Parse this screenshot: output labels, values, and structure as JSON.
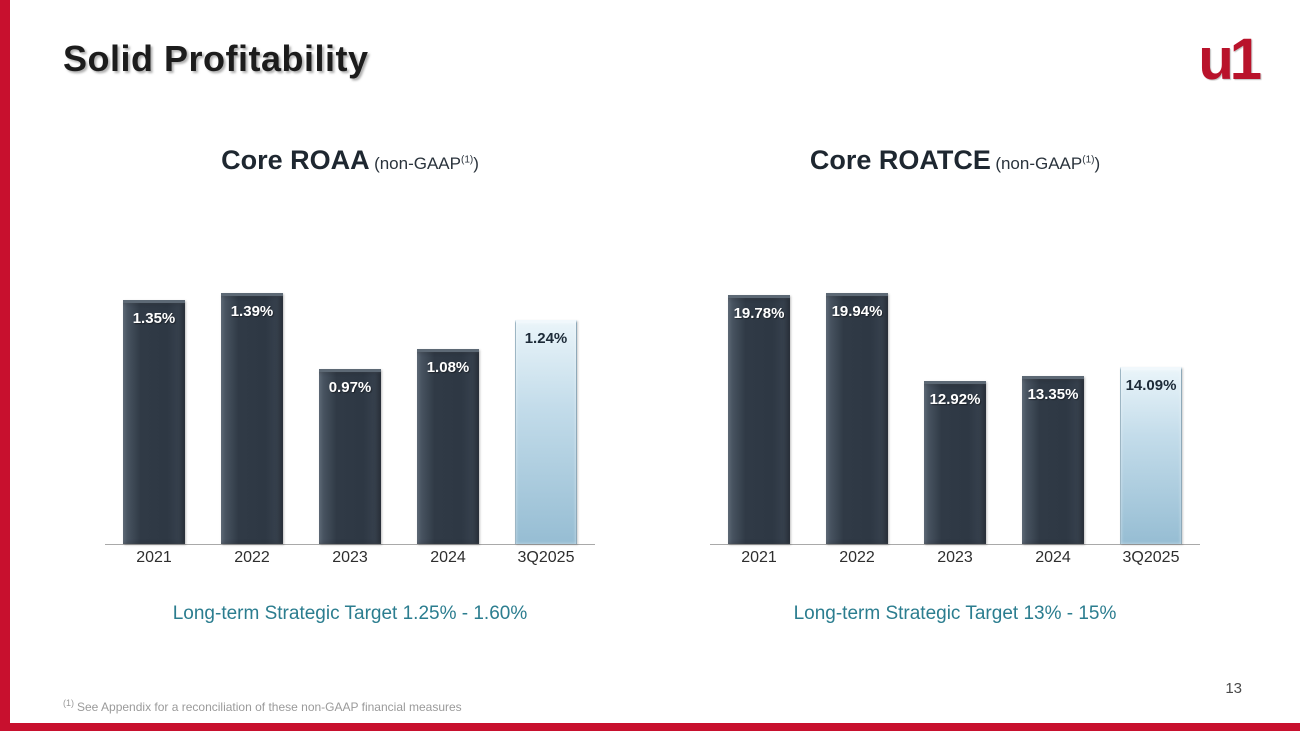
{
  "slide": {
    "title": "Solid Profitability",
    "logo_text": "u1",
    "page_number": "13",
    "footnote_sup": "(1)",
    "footnote_text": "See Appendix for a reconciliation of these non-GAAP financial measures"
  },
  "colors": {
    "accent_red": "#c8102e",
    "dark_bar": "#323c48",
    "highlight_bar": "#a9cbdd",
    "target_teal": "#2b7d8f"
  },
  "chart_data": [
    {
      "type": "bar",
      "title": "Core ROAA",
      "subtitle_pre": "(non-GAAP",
      "subtitle_sup": "(1)",
      "subtitle_post": ")",
      "categories": [
        "2021",
        "2022",
        "2023",
        "2024",
        "3Q2025"
      ],
      "values": [
        1.35,
        1.39,
        0.97,
        1.08,
        1.24
      ],
      "labels": [
        "1.35%",
        "1.39%",
        "0.97%",
        "1.08%",
        "1.24%"
      ],
      "highlight_index": 4,
      "ylim": [
        0,
        1.45
      ],
      "grid": false,
      "legend": "none",
      "target_text": "Long-term Strategic Target 1.25% - 1.60%"
    },
    {
      "type": "bar",
      "title": "Core ROATCE",
      "subtitle_pre": "(non-GAAP",
      "subtitle_sup": "(1)",
      "subtitle_post": ")",
      "categories": [
        "2021",
        "2022",
        "2023",
        "2024",
        "3Q2025"
      ],
      "values": [
        19.78,
        19.94,
        12.92,
        13.35,
        14.09
      ],
      "labels": [
        "19.78%",
        "19.94%",
        "12.92%",
        "13.35%",
        "14.09%"
      ],
      "highlight_index": 4,
      "ylim": [
        0,
        20.8
      ],
      "grid": false,
      "legend": "none",
      "target_text": "Long-term Strategic Target 13% - 15%"
    }
  ]
}
